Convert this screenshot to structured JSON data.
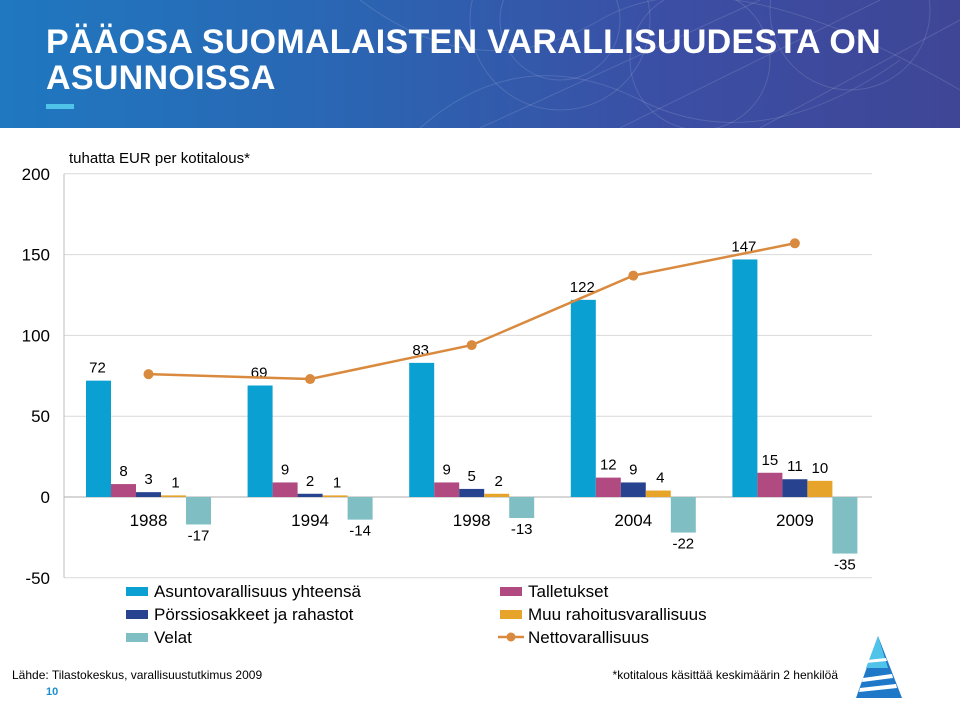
{
  "slide": {
    "title": "PÄÄOSA SUOMALAISTEN VARALLISUUDESTA ON ASUNNOISSA",
    "source": "Lähde: Tilastokeskus, varallisuustutkimus 2009",
    "footnote": "*kotitalous käsittää keskimäärin 2 henkilöä",
    "page_number": "10"
  },
  "colors": {
    "header": "#2a66b3",
    "underline": "#4fc3e8",
    "page_number": "#1a8fd0"
  },
  "chart_data": {
    "type": "bar",
    "title": "",
    "unit_label": "tuhatta EUR per kotitalous*",
    "categories": [
      "1988",
      "1994",
      "1998",
      "2004",
      "2009"
    ],
    "ylim": [
      -50,
      200
    ],
    "yticks": [
      -50,
      0,
      50,
      100,
      150,
      200
    ],
    "grid": true,
    "legend_position": "bottom",
    "series": [
      {
        "name": "Asuntovarallisuus yhteensä",
        "kind": "bar",
        "color": "#0aa0d2",
        "values": [
          72,
          69,
          83,
          122,
          147
        ],
        "labels": [
          "72",
          "69",
          "83",
          "122",
          "147"
        ]
      },
      {
        "name": "Talletukset",
        "kind": "bar",
        "color": "#b04a80",
        "values": [
          8,
          9,
          9,
          12,
          15
        ],
        "labels": [
          "8",
          "9",
          "9",
          "12",
          "15"
        ]
      },
      {
        "name": "Pörssiosakkeet ja rahastot",
        "kind": "bar",
        "color": "#27428e",
        "values": [
          3,
          2,
          5,
          9,
          11
        ],
        "labels": [
          "3",
          "2",
          "5",
          "9",
          "11"
        ]
      },
      {
        "name": "Muu rahoitusvarallisuus",
        "kind": "bar",
        "color": "#e7a42a",
        "values": [
          1,
          1,
          2,
          4,
          10
        ],
        "labels": [
          "1",
          "1",
          "2",
          "4",
          "10"
        ]
      },
      {
        "name": "Velat",
        "kind": "bar",
        "color": "#7fbfc4",
        "values": [
          -17,
          -14,
          -13,
          -22,
          -35
        ],
        "labels": [
          "-17",
          "-14",
          "-13",
          "-22",
          "-35"
        ]
      },
      {
        "name": "Nettovarallisuus",
        "kind": "line",
        "color": "#d98a3e",
        "values": [
          76,
          73,
          94,
          137,
          157
        ]
      }
    ]
  }
}
